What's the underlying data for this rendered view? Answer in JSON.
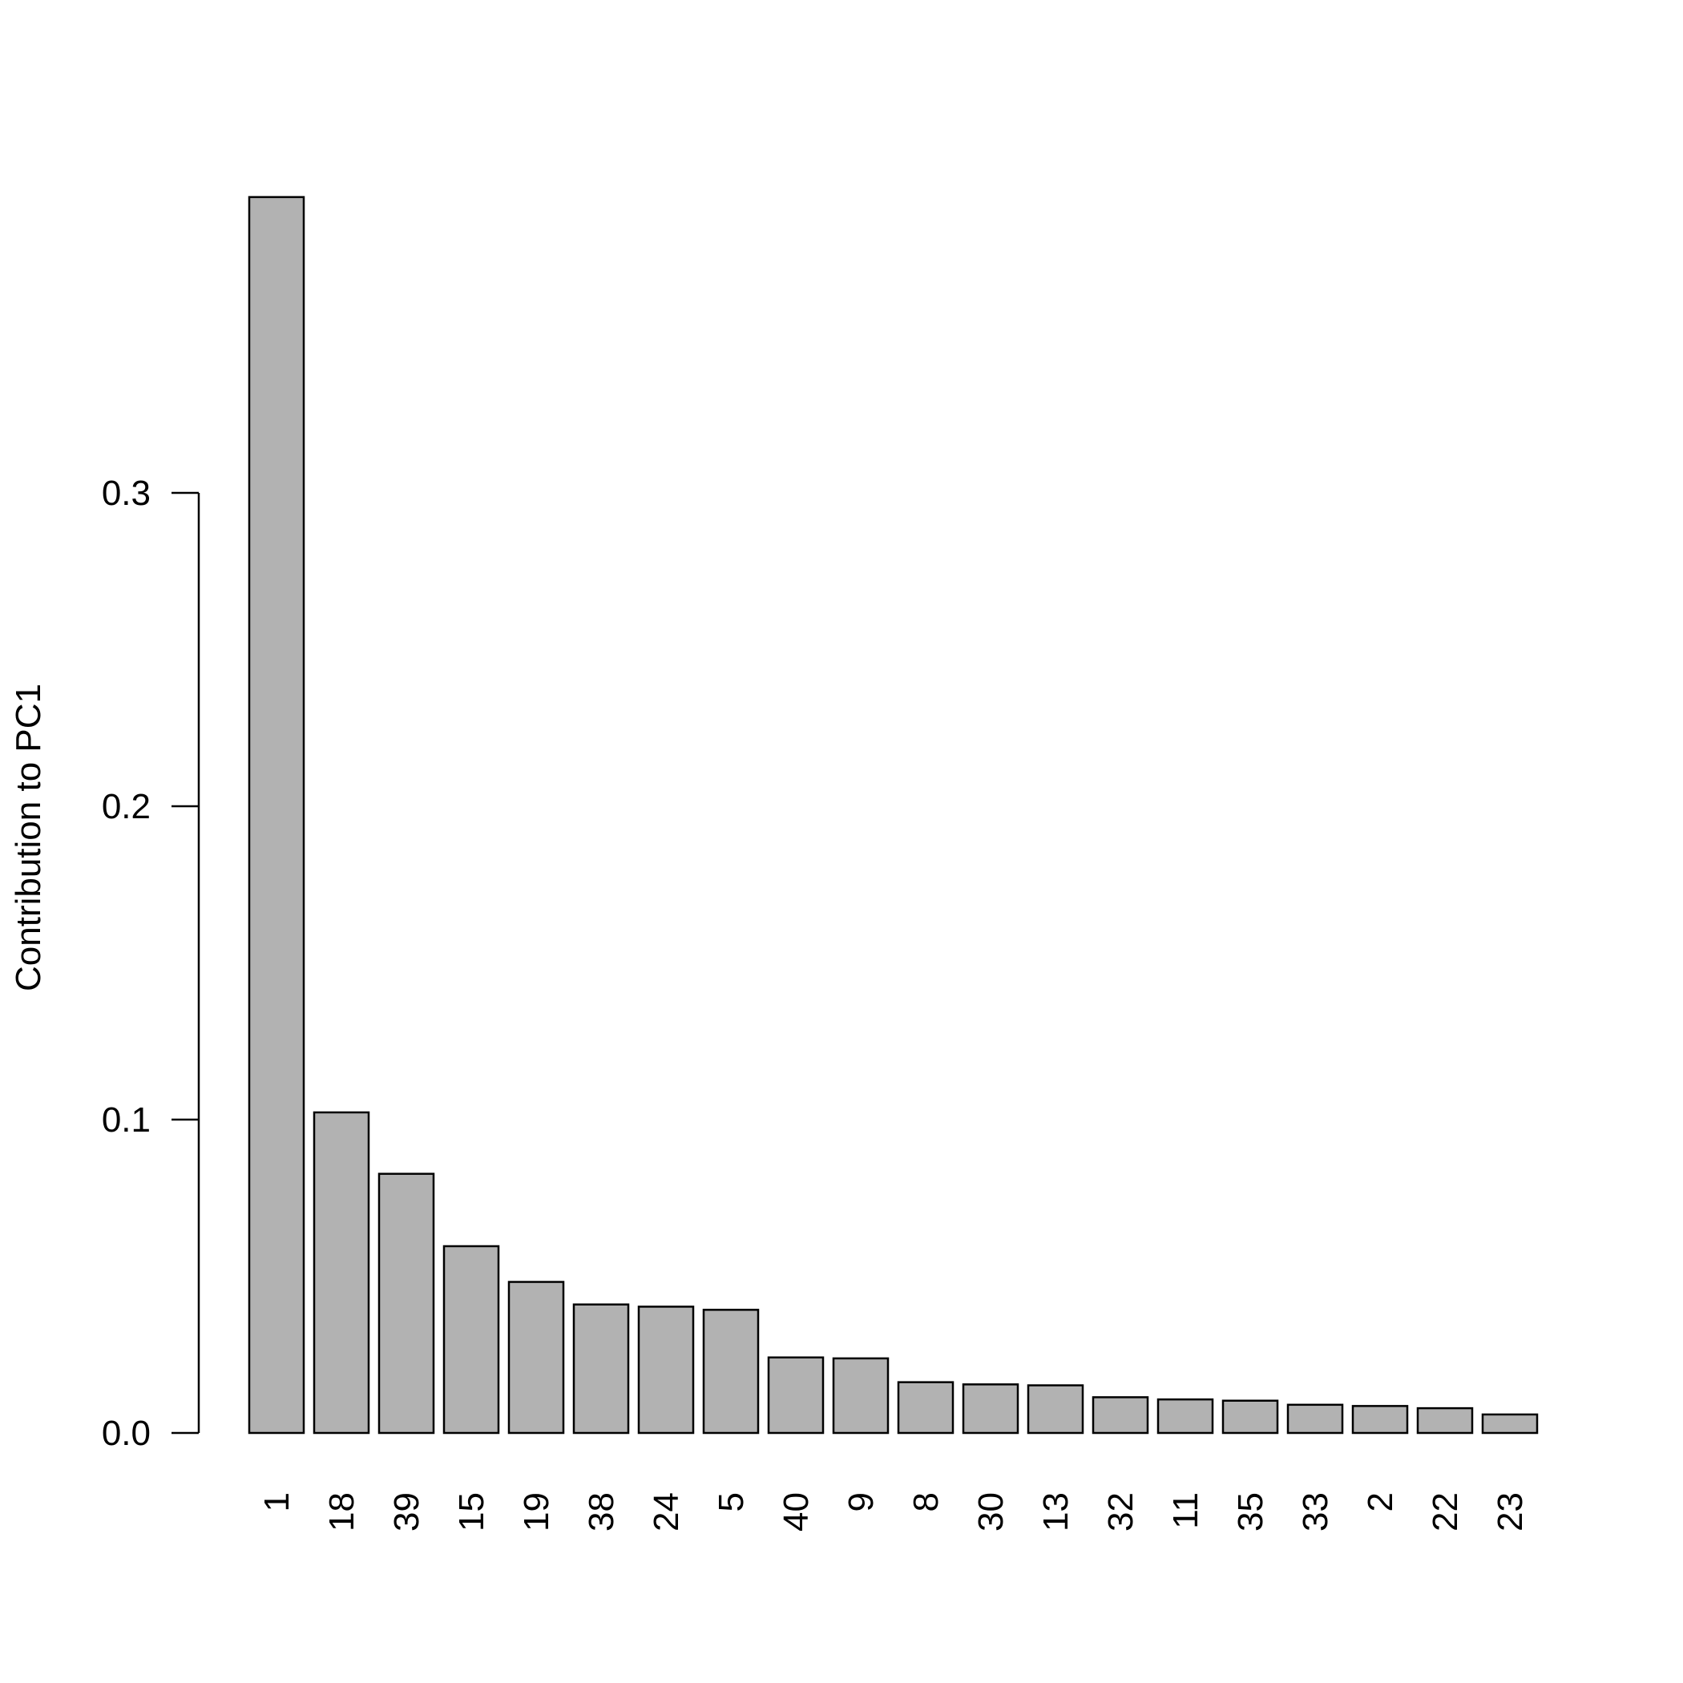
{
  "chart_data": {
    "type": "bar",
    "title": "",
    "xlabel": "",
    "ylabel": "Contribution to PC1",
    "ylim": [
      0,
      0.4
    ],
    "yticks": [
      "0.0",
      "0.1",
      "0.2",
      "0.3"
    ],
    "grid": false,
    "bar_color": "#b2b2b2",
    "categories": [
      "1",
      "18",
      "39",
      "15",
      "19",
      "38",
      "24",
      "5",
      "40",
      "9",
      "8",
      "30",
      "13",
      "32",
      "11",
      "35",
      "33",
      "2",
      "22",
      "23"
    ],
    "values": [
      0.3944,
      0.1023,
      0.0827,
      0.0596,
      0.0482,
      0.041,
      0.0403,
      0.0393,
      0.0241,
      0.0238,
      0.0162,
      0.0155,
      0.0152,
      0.0114,
      0.0107,
      0.0103,
      0.009,
      0.0086,
      0.0079,
      0.0059
    ]
  }
}
